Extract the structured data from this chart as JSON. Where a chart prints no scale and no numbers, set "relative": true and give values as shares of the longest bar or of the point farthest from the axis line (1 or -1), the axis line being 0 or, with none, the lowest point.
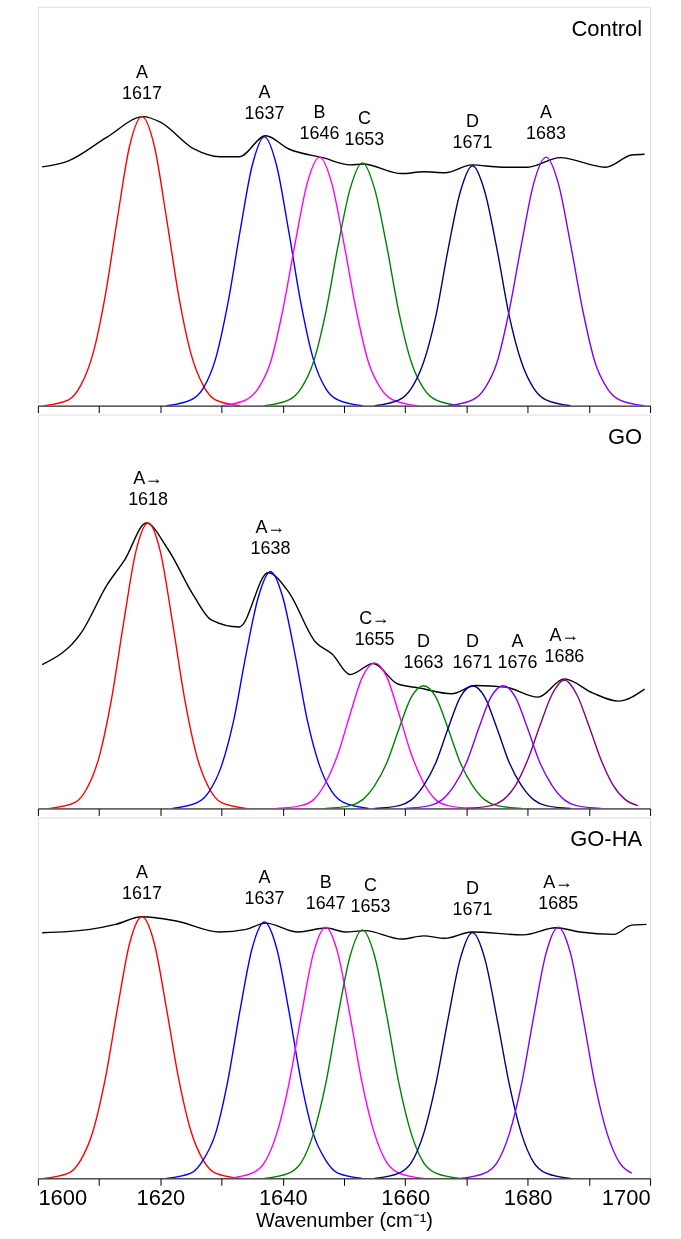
{
  "chart_data": [
    {
      "type": "line",
      "title": "Control",
      "relative": true,
      "grid": false,
      "tick_labels": false,
      "xlim": [
        1600,
        1700
      ],
      "xticks": [
        {
          "value": 1600,
          "label": null
        },
        {
          "value": 1610,
          "label": null
        },
        {
          "value": 1620,
          "label": null
        },
        {
          "value": 1630,
          "label": null
        },
        {
          "value": 1640,
          "label": null
        },
        {
          "value": 1650,
          "label": null
        },
        {
          "value": 1660,
          "label": null
        },
        {
          "value": 1670,
          "label": null
        },
        {
          "value": 1680,
          "label": null
        },
        {
          "value": 1690,
          "label": null
        },
        {
          "value": 1700,
          "label": null
        }
      ],
      "series": [
        {
          "color": "#000000",
          "x": [
            1600.7,
            1605,
            1611.3,
            1617.2,
            1620,
            1625.5,
            1629.7,
            1632.9,
            1637.2,
            1641,
            1646.7,
            1651,
            1653.1,
            1659.4,
            1663,
            1666.5,
            1670.9,
            1675.7,
            1680,
            1685.3,
            1692.7,
            1697,
            1699.1
          ],
          "values": [
            0.826,
            0.847,
            0.929,
            1.0,
            0.981,
            0.888,
            0.861,
            0.861,
            0.934,
            0.888,
            0.857,
            0.833,
            0.836,
            0.803,
            0.809,
            0.806,
            0.833,
            0.825,
            0.825,
            0.858,
            0.825,
            0.867,
            0.87
          ]
        },
        {
          "color": "#ff0000",
          "x": [
            1601,
            1605,
            1607,
            1609,
            1611,
            1613,
            1615,
            1617,
            1619,
            1621,
            1623,
            1625,
            1627,
            1629,
            1633
          ],
          "values": [
            0,
            0.02,
            0.07,
            0.18,
            0.38,
            0.65,
            0.9,
            1,
            0.9,
            0.65,
            0.38,
            0.18,
            0.07,
            0.02,
            0
          ]
        },
        {
          "color": "#0000ff",
          "x": [
            1621,
            1625,
            1627,
            1629,
            1631,
            1633,
            1635,
            1637,
            1639,
            1641,
            1643,
            1645,
            1647,
            1649,
            1653
          ],
          "values": [
            0,
            0.02,
            0.06,
            0.16,
            0.35,
            0.6,
            0.83,
            0.93,
            0.83,
            0.6,
            0.35,
            0.16,
            0.06,
            0.02,
            0
          ]
        },
        {
          "color": "#ff00ff",
          "x": [
            1630,
            1634,
            1636,
            1638,
            1640,
            1642,
            1644,
            1646,
            1648,
            1650,
            1652,
            1654,
            1656,
            1658,
            1662
          ],
          "values": [
            0,
            0.02,
            0.06,
            0.15,
            0.33,
            0.56,
            0.77,
            0.86,
            0.77,
            0.56,
            0.33,
            0.15,
            0.06,
            0.02,
            0
          ]
        },
        {
          "color": "#008000",
          "x": [
            1637,
            1641,
            1643,
            1645,
            1647,
            1649,
            1651,
            1653,
            1655,
            1657,
            1659,
            1661,
            1663,
            1665,
            1669
          ],
          "values": [
            0,
            0.02,
            0.06,
            0.15,
            0.32,
            0.55,
            0.75,
            0.84,
            0.75,
            0.55,
            0.32,
            0.15,
            0.06,
            0.02,
            0
          ]
        },
        {
          "color": "#000080",
          "x": [
            1655,
            1659,
            1661,
            1663,
            1665,
            1667,
            1669,
            1671,
            1673,
            1675,
            1677,
            1679,
            1681,
            1683,
            1687
          ],
          "values": [
            0,
            0.02,
            0.06,
            0.15,
            0.31,
            0.54,
            0.74,
            0.83,
            0.74,
            0.54,
            0.31,
            0.15,
            0.06,
            0.02,
            0
          ]
        },
        {
          "color": "#8000ff",
          "x": [
            1667,
            1671,
            1673,
            1675,
            1677,
            1679,
            1681,
            1683,
            1685,
            1687,
            1689,
            1691,
            1693,
            1695,
            1699
          ],
          "values": [
            0,
            0.02,
            0.06,
            0.15,
            0.33,
            0.56,
            0.77,
            0.86,
            0.77,
            0.56,
            0.33,
            0.15,
            0.06,
            0.02,
            0
          ]
        }
      ],
      "annotations": [
        {
          "text": "1617",
          "x": 1617,
          "y": 1
        },
        {
          "text": "A",
          "x": 1617,
          "y": 1
        },
        {
          "text": "1637",
          "x": 1637,
          "y": 0.93
        },
        {
          "text": "A",
          "x": 1637,
          "y": 0.93
        },
        {
          "text": "1646",
          "x": 1646,
          "y": 0.86
        },
        {
          "text": "B",
          "x": 1646,
          "y": 0.86
        },
        {
          "text": "1653",
          "x": 1653,
          "y": 0.84
        },
        {
          "text": "C",
          "x": 1653,
          "y": 0.84
        },
        {
          "text": "1671",
          "x": 1671,
          "y": 0.83
        },
        {
          "text": "D",
          "x": 1671,
          "y": 0.83
        },
        {
          "text": "1683",
          "x": 1683,
          "y": 0.86
        },
        {
          "text": "A",
          "x": 1683,
          "y": 0.86
        }
      ]
    },
    {
      "type": "line",
      "title": "GO",
      "relative": true,
      "grid": false,
      "tick_labels": false,
      "xlim": [
        1600,
        1700
      ],
      "xticks": [
        {
          "value": 1600,
          "label": null
        },
        {
          "value": 1610,
          "label": null
        },
        {
          "value": 1620,
          "label": null
        },
        {
          "value": 1630,
          "label": null
        },
        {
          "value": 1640,
          "label": null
        },
        {
          "value": 1650,
          "label": null
        },
        {
          "value": 1660,
          "label": null
        },
        {
          "value": 1670,
          "label": null
        },
        {
          "value": 1680,
          "label": null
        },
        {
          "value": 1690,
          "label": null
        },
        {
          "value": 1700,
          "label": null
        }
      ],
      "series": [
        {
          "color": "#000000",
          "x": [
            1600.7,
            1607.1,
            1611.3,
            1614.2,
            1617.7,
            1621.2,
            1625.5,
            1628.3,
            1632.9,
            1637.6,
            1641,
            1645.3,
            1648.1,
            1651,
            1654.8,
            1658.7,
            1662.3,
            1667.6,
            1671.5,
            1676.4,
            1681.7,
            1686,
            1690.6,
            1694.8,
            1699.1
          ],
          "values": [
            0.504,
            0.616,
            0.783,
            0.872,
            1.0,
            0.91,
            0.744,
            0.661,
            0.636,
            0.826,
            0.757,
            0.584,
            0.54,
            0.469,
            0.508,
            0.437,
            0.422,
            0.402,
            0.431,
            0.425,
            0.39,
            0.454,
            0.405,
            0.376,
            0.418
          ]
        },
        {
          "color": "#ff0000",
          "x": [
            1602,
            1606,
            1608,
            1610,
            1612,
            1614,
            1616,
            1618,
            1620,
            1622,
            1624,
            1626,
            1628,
            1630,
            1634
          ],
          "values": [
            0,
            0.02,
            0.07,
            0.18,
            0.38,
            0.65,
            0.9,
            1,
            0.9,
            0.65,
            0.38,
            0.18,
            0.07,
            0.02,
            0
          ]
        },
        {
          "color": "#0000ff",
          "x": [
            1622,
            1626,
            1628,
            1630,
            1632,
            1634,
            1636,
            1638,
            1640,
            1642,
            1644,
            1646,
            1648,
            1650,
            1654
          ],
          "values": [
            0,
            0.02,
            0.06,
            0.15,
            0.31,
            0.54,
            0.74,
            0.83,
            0.74,
            0.54,
            0.31,
            0.15,
            0.06,
            0.02,
            0
          ]
        },
        {
          "color": "#ff00ff",
          "x": [
            1639,
            1643,
            1645,
            1647,
            1649,
            1651,
            1653,
            1655,
            1657,
            1659,
            1661,
            1663,
            1665,
            1667,
            1671
          ],
          "values": [
            0,
            0.01,
            0.03,
            0.09,
            0.19,
            0.33,
            0.46,
            0.51,
            0.46,
            0.33,
            0.19,
            0.09,
            0.03,
            0.01,
            0
          ]
        },
        {
          "color": "#008000",
          "x": [
            1647,
            1651,
            1653,
            1655,
            1657,
            1659,
            1661,
            1663,
            1665,
            1667,
            1669,
            1671,
            1673,
            1675,
            1679
          ],
          "values": [
            0,
            0.01,
            0.03,
            0.08,
            0.16,
            0.28,
            0.39,
            0.43,
            0.39,
            0.28,
            0.16,
            0.08,
            0.03,
            0.01,
            0
          ]
        },
        {
          "color": "#000080",
          "x": [
            1655,
            1659,
            1661,
            1663,
            1665,
            1667,
            1669,
            1671,
            1673,
            1675,
            1677,
            1679,
            1681,
            1683,
            1687
          ],
          "values": [
            0,
            0.01,
            0.03,
            0.08,
            0.16,
            0.28,
            0.39,
            0.43,
            0.39,
            0.28,
            0.16,
            0.08,
            0.03,
            0.01,
            0
          ]
        },
        {
          "color": "#8000ff",
          "x": [
            1660,
            1664,
            1666,
            1668,
            1670,
            1672,
            1674,
            1676,
            1678,
            1680,
            1682,
            1684,
            1686,
            1688,
            1692
          ],
          "values": [
            0,
            0.01,
            0.03,
            0.08,
            0.16,
            0.28,
            0.39,
            0.43,
            0.39,
            0.28,
            0.16,
            0.08,
            0.03,
            0.01,
            0
          ]
        },
        {
          "color": "#800080",
          "x": [
            1670,
            1674,
            1676,
            1678,
            1680,
            1682,
            1684,
            1686,
            1688,
            1690,
            1692,
            1694,
            1696,
            1698
          ],
          "values": [
            0,
            0.01,
            0.03,
            0.08,
            0.17,
            0.29,
            0.4,
            0.45,
            0.4,
            0.29,
            0.17,
            0.08,
            0.03,
            0.01
          ]
        }
      ],
      "annotations": [
        {
          "text": "1618",
          "x": 1618,
          "y": 1
        },
        {
          "text": "A→",
          "x": 1618,
          "y": 1
        },
        {
          "text": "1638",
          "x": 1638,
          "y": 0.83
        },
        {
          "text": "A→",
          "x": 1638,
          "y": 0.83
        },
        {
          "text": "1655",
          "x": 1655,
          "y": 0.51
        },
        {
          "text": "C→",
          "x": 1655,
          "y": 0.51
        },
        {
          "text": "1663",
          "x": 1663,
          "y": 0.43
        },
        {
          "text": "D",
          "x": 1663,
          "y": 0.43
        },
        {
          "text": "1671",
          "x": 1671,
          "y": 0.43
        },
        {
          "text": "D",
          "x": 1671,
          "y": 0.43
        },
        {
          "text": "1676",
          "x": 1676,
          "y": 0.43
        },
        {
          "text": "A",
          "x": 1676,
          "y": 0.43
        },
        {
          "text": "1686",
          "x": 1686,
          "y": 0.45
        },
        {
          "text": "A→",
          "x": 1686,
          "y": 0.45
        }
      ]
    },
    {
      "type": "line",
      "title": "GO-HA",
      "relative": true,
      "grid": false,
      "tick_labels": "x",
      "xlabel": "Wavenumber (cm⁻¹)",
      "xlim": [
        1600,
        1700
      ],
      "xticks": [
        1600,
        {
          "value": 1610,
          "label": null
        },
        1620,
        {
          "value": 1630,
          "label": null
        },
        1640,
        {
          "value": 1650,
          "label": null
        },
        1660,
        {
          "value": 1670,
          "label": null
        },
        1680,
        {
          "value": 1690,
          "label": null
        },
        1700
      ],
      "series": [
        {
          "color": "#000000",
          "x": [
            1600.7,
            1608.5,
            1612.7,
            1617,
            1622.6,
            1629.7,
            1634,
            1637.2,
            1642.5,
            1647.1,
            1650.2,
            1653.4,
            1659.4,
            1663,
            1666.5,
            1670.9,
            1679.3,
            1684.6,
            1688.5,
            1694.1,
            1697,
            1699.4
          ],
          "values": [
            0.939,
            0.952,
            0.971,
            1.0,
            0.984,
            0.942,
            0.952,
            0.976,
            0.942,
            0.957,
            0.942,
            0.947,
            0.915,
            0.927,
            0.918,
            0.942,
            0.931,
            0.958,
            0.942,
            0.933,
            0.968,
            0.971
          ]
        },
        {
          "color": "#ff0000",
          "x": [
            1601,
            1605,
            1607,
            1609,
            1611,
            1613,
            1615,
            1617,
            1619,
            1621,
            1623,
            1625,
            1627,
            1629,
            1633
          ],
          "values": [
            0,
            0.02,
            0.07,
            0.18,
            0.38,
            0.65,
            0.9,
            1,
            0.9,
            0.65,
            0.38,
            0.18,
            0.07,
            0.02,
            0
          ]
        },
        {
          "color": "#0000ff",
          "x": [
            1621,
            1625,
            1627,
            1629,
            1631,
            1633,
            1635,
            1637,
            1639,
            1641,
            1643,
            1645,
            1647,
            1649,
            1653
          ],
          "values": [
            0,
            0.02,
            0.07,
            0.17,
            0.37,
            0.64,
            0.88,
            0.98,
            0.88,
            0.64,
            0.37,
            0.17,
            0.07,
            0.02,
            0
          ]
        },
        {
          "color": "#ff00ff",
          "x": [
            1631,
            1635,
            1637,
            1639,
            1641,
            1643,
            1645,
            1647,
            1649,
            1651,
            1653,
            1655,
            1657,
            1659,
            1663
          ],
          "values": [
            0,
            0.02,
            0.06,
            0.17,
            0.36,
            0.62,
            0.86,
            0.96,
            0.86,
            0.62,
            0.36,
            0.17,
            0.06,
            0.02,
            0
          ]
        },
        {
          "color": "#008000",
          "x": [
            1637,
            1641,
            1643,
            1645,
            1647,
            1649,
            1651,
            1653,
            1655,
            1657,
            1659,
            1661,
            1663,
            1665,
            1669
          ],
          "values": [
            0,
            0.02,
            0.06,
            0.17,
            0.36,
            0.62,
            0.85,
            0.95,
            0.85,
            0.62,
            0.36,
            0.17,
            0.06,
            0.02,
            0
          ]
        },
        {
          "color": "#000080",
          "x": [
            1655,
            1659,
            1661,
            1663,
            1665,
            1667,
            1669,
            1671,
            1673,
            1675,
            1677,
            1679,
            1681,
            1683,
            1687
          ],
          "values": [
            0,
            0.02,
            0.06,
            0.17,
            0.36,
            0.61,
            0.84,
            0.94,
            0.84,
            0.61,
            0.36,
            0.17,
            0.06,
            0.02,
            0
          ]
        },
        {
          "color": "#8000ff",
          "x": [
            1669,
            1673,
            1675,
            1677,
            1679,
            1681,
            1683,
            1685,
            1687,
            1689,
            1691,
            1693,
            1695,
            1697
          ],
          "values": [
            0,
            0.02,
            0.06,
            0.17,
            0.36,
            0.62,
            0.86,
            0.96,
            0.86,
            0.62,
            0.36,
            0.17,
            0.06,
            0.02
          ]
        }
      ],
      "annotations": [
        {
          "text": "1617",
          "x": 1617,
          "y": 1
        },
        {
          "text": "A",
          "x": 1617,
          "y": 1
        },
        {
          "text": "1637",
          "x": 1637,
          "y": 0.98
        },
        {
          "text": "A",
          "x": 1637,
          "y": 0.98
        },
        {
          "text": "1647",
          "x": 1647,
          "y": 0.96
        },
        {
          "text": "B",
          "x": 1647,
          "y": 0.96
        },
        {
          "text": "1653",
          "x": 1653,
          "y": 0.95
        },
        {
          "text": "C",
          "x": 1653,
          "y": 0.95
        },
        {
          "text": "1671",
          "x": 1671,
          "y": 0.94
        },
        {
          "text": "D",
          "x": 1671,
          "y": 0.94
        },
        {
          "text": "1685",
          "x": 1685,
          "y": 0.96
        },
        {
          "text": "A→",
          "x": 1685,
          "y": 0.96
        }
      ]
    }
  ]
}
